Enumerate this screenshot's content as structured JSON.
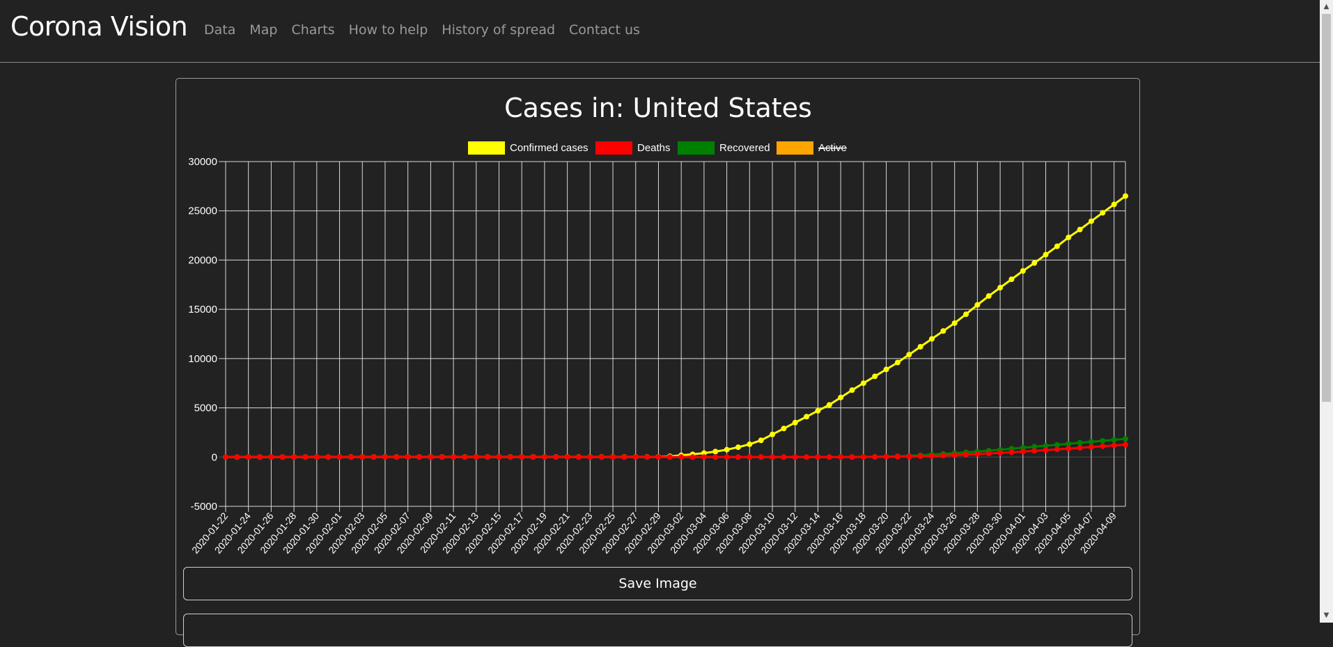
{
  "nav": {
    "brand": "Corona Vision",
    "links": [
      "Data",
      "Map",
      "Charts",
      "How to help",
      "History of spread",
      "Contact us"
    ]
  },
  "buttons": {
    "save_label": "Save Image"
  },
  "chart_data": {
    "type": "line",
    "title": "Cases in: United States",
    "ylim": [
      -5000,
      30000
    ],
    "yticks": [
      30000,
      25000,
      20000,
      15000,
      10000,
      5000,
      0,
      -5000
    ],
    "grid": true,
    "legend": "top",
    "legend_items": [
      {
        "label": "Confirmed cases",
        "color": "#ffff00",
        "hidden": false
      },
      {
        "label": "Deaths",
        "color": "#ff0000",
        "hidden": false
      },
      {
        "label": "Recovered",
        "color": "#008000",
        "hidden": false
      },
      {
        "label": "Active",
        "color": "#ffa500",
        "hidden": true
      }
    ],
    "x": [
      "2020-01-22",
      "2020-01-23",
      "2020-01-24",
      "2020-01-25",
      "2020-01-26",
      "2020-01-27",
      "2020-01-28",
      "2020-01-29",
      "2020-01-30",
      "2020-01-31",
      "2020-02-01",
      "2020-02-02",
      "2020-02-03",
      "2020-02-04",
      "2020-02-05",
      "2020-02-06",
      "2020-02-07",
      "2020-02-08",
      "2020-02-09",
      "2020-02-10",
      "2020-02-11",
      "2020-02-12",
      "2020-02-13",
      "2020-02-14",
      "2020-02-15",
      "2020-02-16",
      "2020-02-17",
      "2020-02-18",
      "2020-02-19",
      "2020-02-20",
      "2020-02-21",
      "2020-02-22",
      "2020-02-23",
      "2020-02-24",
      "2020-02-25",
      "2020-02-26",
      "2020-02-27",
      "2020-02-28",
      "2020-02-29",
      "2020-03-01",
      "2020-03-02",
      "2020-03-03",
      "2020-03-04",
      "2020-03-05",
      "2020-03-06",
      "2020-03-07",
      "2020-03-08",
      "2020-03-09",
      "2020-03-10",
      "2020-03-11",
      "2020-03-12",
      "2020-03-13",
      "2020-03-14",
      "2020-03-15",
      "2020-03-16",
      "2020-03-17",
      "2020-03-18",
      "2020-03-19",
      "2020-03-20",
      "2020-03-21",
      "2020-03-22",
      "2020-03-23",
      "2020-03-24",
      "2020-03-25",
      "2020-03-26",
      "2020-03-27",
      "2020-03-28",
      "2020-03-29",
      "2020-03-30",
      "2020-03-31",
      "2020-04-01",
      "2020-04-02",
      "2020-04-03",
      "2020-04-04",
      "2020-04-05",
      "2020-04-06",
      "2020-04-07",
      "2020-04-08",
      "2020-04-09",
      "2020-04-10"
    ],
    "series": [
      {
        "name": "Confirmed cases",
        "color": "#ffff00",
        "values": [
          1,
          1,
          2,
          2,
          5,
          5,
          5,
          5,
          5,
          6,
          8,
          8,
          11,
          11,
          11,
          12,
          12,
          12,
          12,
          12,
          13,
          13,
          14,
          14,
          14,
          14,
          14,
          14,
          14,
          14,
          16,
          16,
          16,
          16,
          16,
          16,
          16,
          16,
          20,
          80,
          180,
          280,
          400,
          560,
          750,
          1000,
          1300,
          1700,
          2300,
          2900,
          3500,
          4100,
          4700,
          5300,
          6050,
          6800,
          7500,
          8200,
          8900,
          9600,
          10400,
          11200,
          12000,
          12800,
          13600,
          14500,
          15450,
          16350,
          17200,
          18050,
          18900,
          19700,
          20550,
          21400,
          22300,
          23100,
          23950,
          24800,
          25650,
          26500
        ]
      },
      {
        "name": "Recovered",
        "color": "#008000",
        "values": [
          0,
          0,
          0,
          0,
          0,
          0,
          0,
          0,
          0,
          0,
          0,
          0,
          0,
          0,
          0,
          0,
          0,
          0,
          0,
          0,
          0,
          0,
          0,
          0,
          0,
          0,
          0,
          0,
          0,
          0,
          0,
          0,
          0,
          0,
          0,
          0,
          0,
          0,
          0,
          0,
          0,
          0,
          0,
          0,
          0,
          0,
          0,
          0,
          0,
          0,
          0,
          0,
          0,
          0,
          5,
          10,
          20,
          35,
          50,
          80,
          120,
          180,
          250,
          320,
          400,
          480,
          560,
          650,
          750,
          850,
          950,
          1050,
          1150,
          1250,
          1350,
          1450,
          1550,
          1650,
          1750,
          1850
        ]
      },
      {
        "name": "Deaths",
        "color": "#ff0000",
        "values": [
          0,
          0,
          0,
          0,
          0,
          0,
          0,
          0,
          0,
          0,
          0,
          0,
          0,
          0,
          0,
          0,
          0,
          0,
          0,
          0,
          0,
          0,
          0,
          0,
          0,
          0,
          0,
          0,
          0,
          0,
          0,
          0,
          0,
          0,
          0,
          0,
          0,
          0,
          0,
          0,
          0,
          0,
          0,
          0,
          0,
          0,
          0,
          0,
          0,
          0,
          0,
          0,
          0,
          0,
          0,
          0,
          5,
          10,
          20,
          35,
          55,
          80,
          110,
          150,
          200,
          250,
          310,
          370,
          430,
          490,
          560,
          630,
          700,
          780,
          860,
          940,
          1020,
          1100,
          1180,
          1260
        ]
      }
    ]
  }
}
